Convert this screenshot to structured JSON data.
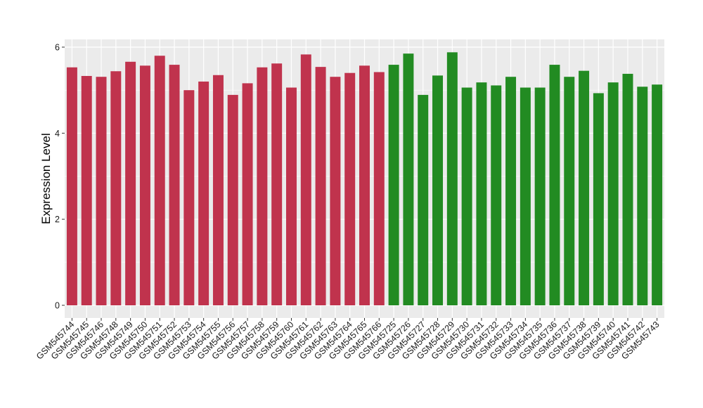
{
  "chart_data": {
    "type": "bar",
    "title": "",
    "xlabel": "",
    "ylabel": "Expression Level",
    "ylim": [
      -0.3,
      6.2
    ],
    "yticks": [
      0,
      2,
      4,
      6
    ],
    "grid": true,
    "legend": "none",
    "colors": {
      "group1": "#c0334d",
      "group2": "#228b22",
      "panel_bg": "#ebebeb",
      "grid": "#ffffff"
    },
    "categories": [
      "GSM545744",
      "GSM545745",
      "GSM545746",
      "GSM545748",
      "GSM545749",
      "GSM545750",
      "GSM545751",
      "GSM545752",
      "GSM545753",
      "GSM545754",
      "GSM545755",
      "GSM545756",
      "GSM545757",
      "GSM545758",
      "GSM545759",
      "GSM545760",
      "GSM545761",
      "GSM545762",
      "GSM545763",
      "GSM545764",
      "GSM545765",
      "GSM545766",
      "GSM545725",
      "GSM545726",
      "GSM545727",
      "GSM545728",
      "GSM545729",
      "GSM545730",
      "GSM545731",
      "GSM545732",
      "GSM545733",
      "GSM545734",
      "GSM545735",
      "GSM545736",
      "GSM545737",
      "GSM545738",
      "GSM545739",
      "GSM545740",
      "GSM545741",
      "GSM545742",
      "GSM545743"
    ],
    "values": [
      5.53,
      5.33,
      5.31,
      5.44,
      5.66,
      5.57,
      5.8,
      5.59,
      5.0,
      5.2,
      5.35,
      4.89,
      5.16,
      5.53,
      5.62,
      5.06,
      5.83,
      5.54,
      5.31,
      5.4,
      5.57,
      5.42,
      5.59,
      5.85,
      4.89,
      5.34,
      5.88,
      5.06,
      5.18,
      5.11,
      5.31,
      5.06,
      5.06,
      5.59,
      5.31,
      5.45,
      4.93,
      5.18,
      5.38,
      5.08,
      5.13
    ],
    "groups": [
      1,
      1,
      1,
      1,
      1,
      1,
      1,
      1,
      1,
      1,
      1,
      1,
      1,
      1,
      1,
      1,
      1,
      1,
      1,
      1,
      1,
      1,
      2,
      2,
      2,
      2,
      2,
      2,
      2,
      2,
      2,
      2,
      2,
      2,
      2,
      2,
      2,
      2,
      2,
      2,
      2
    ]
  }
}
